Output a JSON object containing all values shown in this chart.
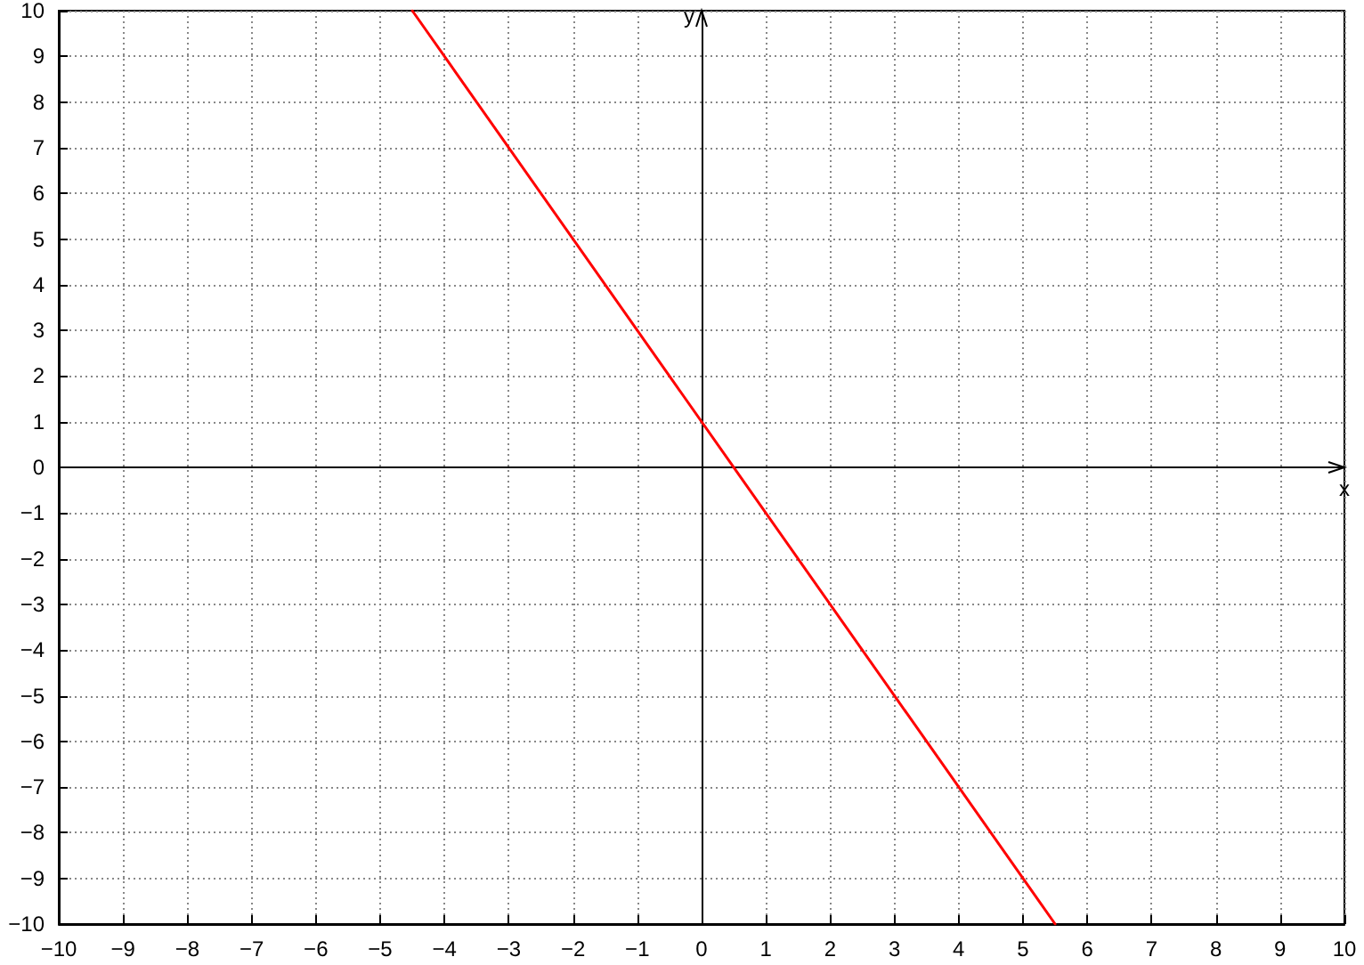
{
  "chart_data": {
    "type": "line",
    "xlabel": "x",
    "ylabel": "y",
    "x": [
      -4.5,
      5.5
    ],
    "series": [
      {
        "color": "#ff0000",
        "values": [
          10,
          -10
        ]
      }
    ],
    "xlim": [
      -10,
      10
    ],
    "ylim": [
      -10,
      10
    ],
    "xticks": [
      {
        "value": -10,
        "label": "−10"
      },
      {
        "value": -9,
        "label": "−9"
      },
      {
        "value": -8,
        "label": "−8"
      },
      {
        "value": -7,
        "label": "−7"
      },
      {
        "value": -6,
        "label": "−6"
      },
      {
        "value": -5,
        "label": "−5"
      },
      {
        "value": -4,
        "label": "−4"
      },
      {
        "value": -3,
        "label": "−3"
      },
      {
        "value": -2,
        "label": "−2"
      },
      {
        "value": -1,
        "label": "−1"
      },
      0,
      1,
      2,
      3,
      4,
      5,
      6,
      7,
      8,
      9,
      10
    ],
    "yticks": [
      {
        "value": -10,
        "label": "−10"
      },
      {
        "value": -9,
        "label": "−9"
      },
      {
        "value": -8,
        "label": "−8"
      },
      {
        "value": -7,
        "label": "−7"
      },
      {
        "value": -6,
        "label": "−6"
      },
      {
        "value": -5,
        "label": "−5"
      },
      {
        "value": -4,
        "label": "−4"
      },
      {
        "value": -3,
        "label": "−3"
      },
      {
        "value": -2,
        "label": "−2"
      },
      {
        "value": -1,
        "label": "−1"
      },
      0,
      1,
      2,
      3,
      4,
      5,
      6,
      7,
      8,
      9,
      10
    ],
    "grid": true,
    "marker": "none",
    "line_style": "solid"
  }
}
